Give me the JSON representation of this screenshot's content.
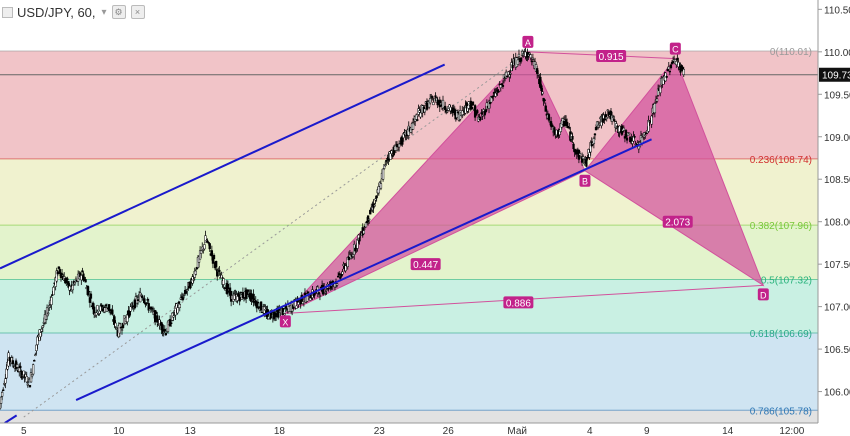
{
  "header": {
    "symbol": "USD/JPY, 60,",
    "caret_icon": "chevron-down-icon",
    "buttons": [
      "settings-icon",
      "close-icon"
    ]
  },
  "colors": {
    "band_0": "#f1c4c8",
    "band_0236": "#f0f2cf",
    "band_0382": "#e3f3cc",
    "band_05": "#c9f0e3",
    "band_0618": "#cfe4f2",
    "band_0786": "#e2e2e2",
    "candle_up": "#000000",
    "candle_down": "#000000",
    "channel": "#1a1acc",
    "pattern_fill": "#d2519c",
    "pattern_label_bg": "#c2228a",
    "current_price_bg": "#111111",
    "level_0": "#999999",
    "level_0236": "#d12f2f",
    "level_0382": "#78c83a",
    "level_05": "#2bb37c",
    "level_0618": "#2aa88a",
    "level_0786": "#2f77b4"
  },
  "chart_data": {
    "type": "candlestick",
    "title": "USD/JPY, 60,",
    "x_ticks": [
      "5",
      "10",
      "13",
      "18",
      "23",
      "26",
      "Май",
      "4",
      "9",
      "14",
      "12:00"
    ],
    "x_tick_days": [
      1.0,
      5.0,
      8.0,
      11.75,
      15.95,
      18.85,
      21.75,
      24.8,
      27.2,
      30.6,
      33.3
    ],
    "x_range_days": [
      0,
      34.4
    ],
    "y_ticks": [
      "110.50",
      "110.00",
      "109.50",
      "109.00",
      "108.50",
      "108.00",
      "107.50",
      "107.00",
      "106.50",
      "106.00"
    ],
    "ylim": [
      105.63,
      110.61
    ],
    "current_price": "109.73",
    "fib_levels": [
      {
        "ratio": 0,
        "price": 110.01,
        "label": "0(110.01)"
      },
      {
        "ratio": 0.236,
        "price": 108.74,
        "label": "0.236(108.74)"
      },
      {
        "ratio": 0.382,
        "price": 107.96,
        "label": "0.382(107.96)"
      },
      {
        "ratio": 0.5,
        "price": 107.32,
        "label": "0.5(107.32)"
      },
      {
        "ratio": 0.618,
        "price": 106.69,
        "label": "0.618(106.69)"
      },
      {
        "ratio": 0.786,
        "price": 105.78,
        "label": "0.786(105.78)"
      }
    ],
    "pattern_points": [
      {
        "name": "X",
        "day": 12.0,
        "price": 106.92
      },
      {
        "name": "A",
        "day": 22.2,
        "price": 110.0
      },
      {
        "name": "B",
        "day": 24.6,
        "price": 108.6
      },
      {
        "name": "C",
        "day": 28.4,
        "price": 109.92
      },
      {
        "name": "D",
        "day": 32.1,
        "price": 107.25
      }
    ],
    "ratios": [
      {
        "text": "0.447",
        "day": 17.9,
        "price": 107.5
      },
      {
        "text": "0.915",
        "day": 25.7,
        "price": 109.95
      },
      {
        "text": "2.073",
        "day": 28.5,
        "price": 108.0
      },
      {
        "text": "0.886",
        "day": 21.8,
        "price": 107.05
      }
    ],
    "channel_lines": [
      {
        "from": {
          "day": 0.0,
          "price": 107.45
        },
        "to": {
          "day": 18.7,
          "price": 109.85
        }
      },
      {
        "from": {
          "day": 3.2,
          "price": 105.9
        },
        "to": {
          "day": 27.4,
          "price": 108.97
        }
      },
      {
        "from": {
          "day": 0.2,
          "price": 105.63
        },
        "to": {
          "day": 0.7,
          "price": 105.72
        }
      }
    ],
    "dotted_line": {
      "from": {
        "day": 1.0,
        "price": 105.7
      },
      "to": {
        "day": 22.2,
        "price": 110.0
      }
    },
    "ohlc_anchors": [
      [
        0.0,
        105.8
      ],
      [
        0.4,
        106.4
      ],
      [
        1.3,
        106.1
      ],
      [
        1.6,
        106.6
      ],
      [
        2.0,
        106.9
      ],
      [
        2.5,
        107.45
      ],
      [
        3.0,
        107.2
      ],
      [
        3.5,
        107.4
      ],
      [
        4.0,
        106.95
      ],
      [
        4.6,
        107.0
      ],
      [
        5.0,
        106.7
      ],
      [
        5.6,
        107.0
      ],
      [
        6.0,
        107.15
      ],
      [
        6.4,
        106.95
      ],
      [
        7.0,
        106.7
      ],
      [
        7.5,
        107.0
      ],
      [
        8.1,
        107.3
      ],
      [
        8.7,
        107.8
      ],
      [
        9.2,
        107.4
      ],
      [
        9.8,
        107.1
      ],
      [
        10.5,
        107.15
      ],
      [
        11.3,
        106.9
      ],
      [
        12.0,
        106.95
      ],
      [
        12.8,
        107.1
      ],
      [
        13.6,
        107.2
      ],
      [
        14.2,
        107.3
      ],
      [
        14.8,
        107.6
      ],
      [
        15.3,
        107.9
      ],
      [
        15.9,
        108.3
      ],
      [
        16.3,
        108.75
      ],
      [
        16.8,
        108.9
      ],
      [
        17.3,
        109.1
      ],
      [
        17.7,
        109.3
      ],
      [
        18.3,
        109.45
      ],
      [
        18.8,
        109.35
      ],
      [
        19.3,
        109.25
      ],
      [
        19.8,
        109.4
      ],
      [
        20.2,
        109.2
      ],
      [
        20.6,
        109.4
      ],
      [
        21.1,
        109.6
      ],
      [
        21.6,
        109.85
      ],
      [
        22.2,
        110.0
      ],
      [
        22.6,
        109.8
      ],
      [
        23.0,
        109.3
      ],
      [
        23.4,
        109.0
      ],
      [
        23.8,
        109.2
      ],
      [
        24.3,
        108.8
      ],
      [
        24.7,
        108.7
      ],
      [
        25.1,
        109.1
      ],
      [
        25.6,
        109.3
      ],
      [
        26.0,
        109.1
      ],
      [
        26.5,
        109.0
      ],
      [
        26.9,
        108.9
      ],
      [
        27.4,
        109.2
      ],
      [
        27.8,
        109.6
      ],
      [
        28.4,
        109.92
      ],
      [
        28.8,
        109.75
      ]
    ]
  }
}
